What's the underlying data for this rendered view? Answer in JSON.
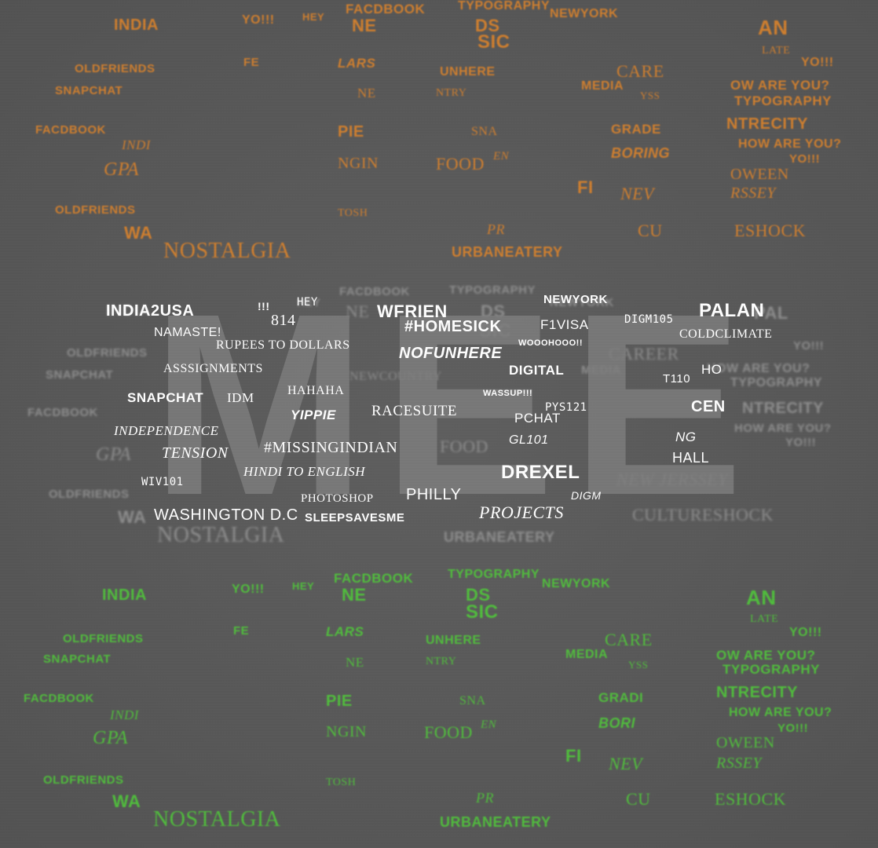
{
  "colors": {
    "background": "#5a5a5a",
    "orange": "#d9822b",
    "green": "#4fc63a",
    "ghost": "#8e8e8e",
    "white": "#ffffff",
    "big_word": "#7d7d7d"
  },
  "big_word": "MEET",
  "orange_words": [
    "INDIA",
    "YO!!!",
    "HEY",
    "FACDBOOK",
    "NE",
    "DS",
    "TYPOGRAPHY",
    "NEWYORK",
    "AN",
    "SIC",
    "OLDFRIENDS",
    "FE",
    "LARS",
    "UNHERE",
    "CARE",
    "LATE",
    "YO!!!",
    "SNAPCHAT",
    "NE",
    "NTRY",
    "MEDIA",
    "YSS",
    "OW ARE YOU?",
    "TYPOGRAPHY",
    "FACDBOOK",
    "PIE",
    "SNA",
    "GRADE",
    "NTRECITY",
    "INDI",
    "BORING",
    "HOW ARE YOU?",
    "YO!!!",
    "GPA",
    "NGIN",
    "FOOD",
    "EN",
    "OWEEN",
    "FI",
    "NEV",
    "RSSEY",
    "OLDFRIENDS",
    "TOSH",
    "PR",
    "CU",
    "ESHOCK",
    "NOSTALGIA",
    "URBANEATERY",
    "WA"
  ],
  "ghost_words": [
    "INDIA",
    "HEY",
    "NE",
    "FACDBOOK",
    "TYPOGRAPHY",
    "DS",
    "NEWYORK",
    "SIC",
    "PAL",
    "YO!!!",
    "OLDFRIENDS",
    "CAREER",
    "SNAPCHAT",
    "NEWCOUNTRY",
    "MEDIA",
    "HOW ARE YOU?",
    "TYPOGRAPHY",
    "FACDBOOK",
    "NTRECITY",
    "HOW ARE YOU?",
    "YO!!!",
    "GPA",
    "FOOD",
    "OLDFRIENDS",
    "NEW JERSSEY",
    "CULTURESHOCK",
    "NOSTALGIA",
    "URBANEATERY",
    "WA"
  ],
  "white_words": [
    "INDIA2USA",
    "!!!",
    "HEY",
    "WFRIEN",
    "NEWYORK",
    "PALAN",
    "814",
    "NAMASTE!",
    "#HOMESICK",
    "F1VISA",
    "DIGM105",
    "RUPEES TO DOLLARS",
    "NOFUNHERE",
    "WOOOHOOO!!",
    "COLDCLIMATE",
    "ASSSIGNMENTS",
    "DIGITAL",
    "HO",
    "T110",
    "SNAPCHAT",
    "IDM",
    "HAHAHA",
    "WASSUP!!!",
    "YIPPIE",
    "RACESUITE",
    "PCHAT",
    "PYS121",
    "CEN",
    "INDEPENDENCE",
    "GL101",
    "NG",
    "TENSION",
    "#MISSINGINDIAN",
    "HALL",
    "HINDI TO ENGLISH",
    "DREXEL",
    "WIV101",
    "PHILLY",
    "DIGM",
    "PHOTOSHOP",
    "WASHINGTON D.C",
    "PROJECTS",
    "SLEEPSAVESME"
  ],
  "green_words": [
    "INDIA",
    "YO!!!",
    "HEY",
    "FACDBOOK",
    "NE",
    "TYPOGRAPHY",
    "DS",
    "NEWYORK",
    "AN",
    "SIC",
    "OLDFRIENDS",
    "FE",
    "LARS",
    "UNHERE",
    "CARE",
    "LATE",
    "YO!!!",
    "SNAPCHAT",
    "NE",
    "NTRY",
    "MEDIA",
    "YSS",
    "OW ARE YOU?",
    "TYPOGRAPHY",
    "FACDBOOK",
    "PIE",
    "SNA",
    "GRADI",
    "NTRECITY",
    "INDI",
    "BORI",
    "HOW ARE YOU?",
    "YO!!!",
    "GPA",
    "NGIN",
    "FOOD",
    "EN",
    "OWEEN",
    "FI",
    "NEV",
    "RSSEY",
    "OLDFRIENDS",
    "TOSH",
    "PR",
    "CU",
    "ESHOCK",
    "NOSTALGIA",
    "URBANEATERY",
    "WA"
  ]
}
